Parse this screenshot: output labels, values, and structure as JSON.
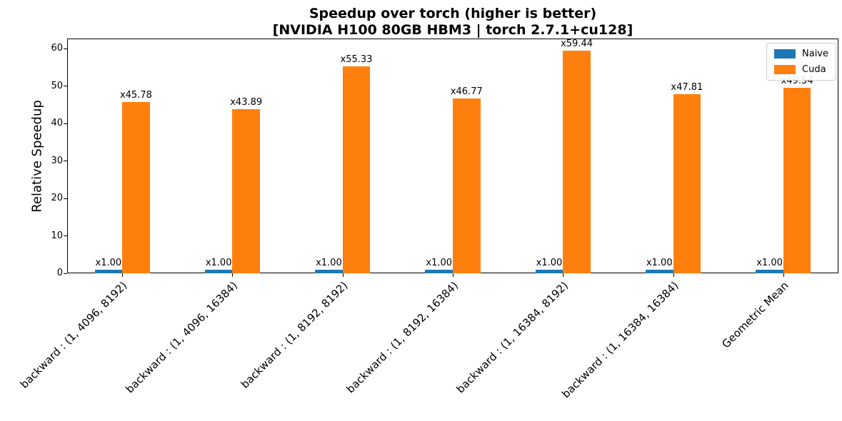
{
  "figure": {
    "background": "#ffffff",
    "text_color": "#000000"
  },
  "chart_data": {
    "type": "bar",
    "title": "Speedup over torch (higher is better)",
    "subtitle": "[NVIDIA H100 80GB HBM3 | torch 2.7.1+cu128]",
    "xlabel": "",
    "ylabel": "Relative Speedup",
    "ylim": [
      0,
      62.7
    ],
    "yticks": [
      0,
      10,
      20,
      30,
      40,
      50,
      60
    ],
    "grid": false,
    "legend_position": "upper right",
    "categories": [
      "backward : (1, 4096, 8192)",
      "backward : (1, 4096, 16384)",
      "backward : (1, 8192, 8192)",
      "backward : (1, 8192, 16384)",
      "backward : (1, 16384, 8192)",
      "backward : (1, 16384, 16384)",
      "Geometric Mean"
    ],
    "series": [
      {
        "name": "Naive",
        "color": "#1f77b4",
        "values": [
          1.0,
          1.0,
          1.0,
          1.0,
          1.0,
          1.0,
          1.0
        ],
        "bar_labels": [
          "x1.00",
          "x1.00",
          "x1.00",
          "x1.00",
          "x1.00",
          "x1.00",
          "x1.00"
        ]
      },
      {
        "name": "Cuda",
        "color": "#ff7f0e",
        "values": [
          45.78,
          43.89,
          55.33,
          46.77,
          59.44,
          47.81,
          49.54
        ],
        "bar_labels": [
          "x45.78",
          "x43.89",
          "x55.33",
          "x46.77",
          "x59.44",
          "x47.81",
          "x49.54"
        ]
      }
    ]
  }
}
